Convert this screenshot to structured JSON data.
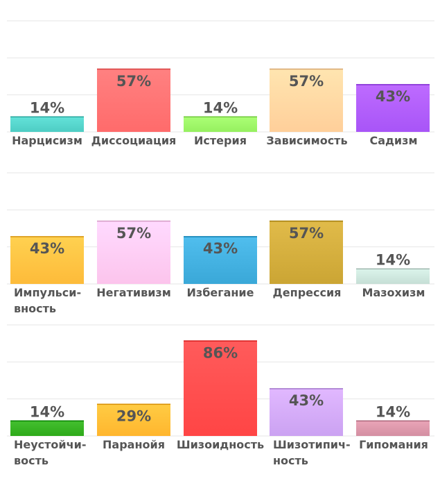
{
  "chart_data": [
    {
      "type": "bar",
      "ylim": [
        0,
        100
      ],
      "grid": true,
      "categories": [
        "Нарцисизм",
        "Диссоциация",
        "Истерия",
        "Зависимость",
        "Садизм"
      ],
      "values": [
        14,
        57,
        14,
        57,
        43
      ],
      "data_labels": [
        "14%",
        "57%",
        "14%",
        "57%",
        "43%"
      ],
      "colors": [
        "#4ecdc4",
        "#ff6b6b",
        "#96f060",
        "#ffcf9a",
        "#a855f7"
      ]
    },
    {
      "type": "bar",
      "ylim": [
        0,
        100
      ],
      "grid": true,
      "categories": [
        "Импульси-вность",
        "Негативизм",
        "Избегание",
        "Депрессия",
        "Мазохизм"
      ],
      "values": [
        43,
        57,
        43,
        57,
        14
      ],
      "data_labels": [
        "43%",
        "57%",
        "43%",
        "57%",
        "14%"
      ],
      "colors": [
        "#fdbb3a",
        "#fcc4ec",
        "#3aa8d8",
        "#cba534",
        "#c6dfd6"
      ]
    },
    {
      "type": "bar",
      "ylim": [
        0,
        100
      ],
      "grid": true,
      "categories": [
        "Неустойчи-вость",
        "Паранойя",
        "Шизоидность",
        "Шизотипич-ность",
        "Гипомания"
      ],
      "values": [
        14,
        29,
        86,
        43,
        14
      ],
      "data_labels": [
        "14%",
        "29%",
        "86%",
        "43%",
        "14%"
      ],
      "colors": [
        "#2eaa1a",
        "#ffb62e",
        "#ff4545",
        "#cba2f2",
        "#d48fa2"
      ]
    }
  ]
}
